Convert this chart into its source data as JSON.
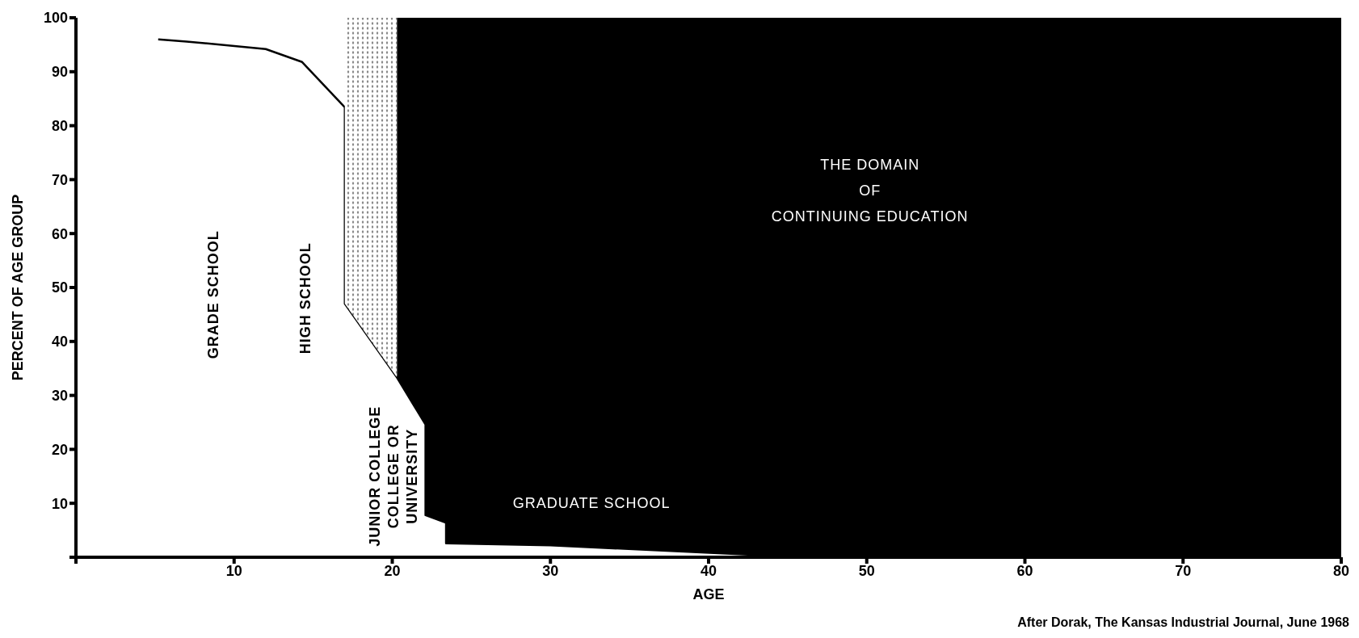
{
  "chart_data": {
    "type": "area",
    "stacked": true,
    "xlabel": "AGE",
    "ylabel": "PERCENT OF AGE GROUP",
    "x": [
      5.2,
      7,
      12,
      14.3,
      17,
      17,
      20.3,
      20.3,
      22.1,
      22.1,
      23.2,
      23.4,
      23.4,
      30,
      46,
      80
    ],
    "series": [
      {
        "color": "#ffffff",
        "values": [
          96,
          95.6,
          94.2,
          91.8,
          83.4,
          47,
          33.3,
          33.3,
          24.6,
          7.8,
          6.6,
          6.4,
          2.6,
          2.2,
          0,
          0
        ]
      },
      {
        "color": "#8a8a8a",
        "values": [
          null,
          null,
          null,
          null,
          16.6,
          53,
          66.7,
          null,
          null,
          null,
          null,
          null,
          null,
          null,
          null,
          null
        ]
      },
      {
        "color": "#000000",
        "values": [
          null,
          null,
          null,
          null,
          null,
          null,
          null,
          66.7,
          75.4,
          92.2,
          93.4,
          93.6,
          97.4,
          97.8,
          100,
          100
        ]
      }
    ],
    "xlim": [
      0,
      80
    ],
    "xticks": [
      {
        "value": 0,
        "label": null
      },
      10,
      20,
      30,
      40,
      50,
      60,
      70,
      80
    ],
    "ylim": [
      0,
      100
    ],
    "yticks": [
      {
        "value": 0,
        "label": null
      },
      10,
      20,
      30,
      40,
      50,
      60,
      70,
      80,
      90,
      100
    ],
    "grid": false,
    "legend": false,
    "annotations": [
      "GRADE SCHOOL",
      "HIGH SCHOOL",
      "JUNIOR COLLEGE\nCOLLEGE OR\nUNIVERSITY",
      "GRADUATE SCHOOL",
      "THE DOMAIN\nOF\nCONTINUING EDUCATION",
      "After Dorak, The Kansas Industrial Journal, June 1968"
    ]
  }
}
